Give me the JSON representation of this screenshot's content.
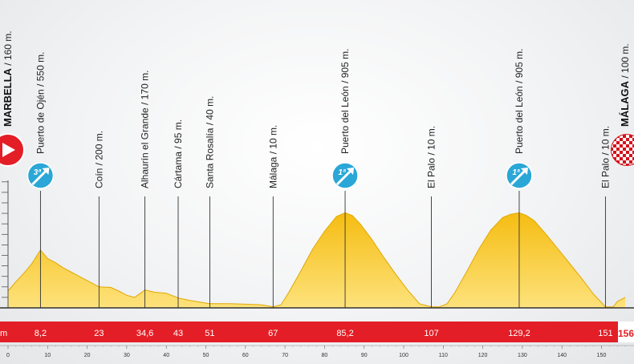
{
  "chart_data": {
    "type": "area",
    "title": "",
    "xlabel": "",
    "ylabel": "",
    "xlim": [
      0,
      156
    ],
    "x_ticks": [
      0,
      10,
      20,
      30,
      40,
      50,
      60,
      70,
      80,
      90,
      100,
      110,
      120,
      130,
      140,
      150
    ],
    "colors": {
      "fill": "#f6c31c",
      "fill_light": "#fbe27a",
      "band": "#e41e26",
      "category": "#2aa7d6",
      "start": "#e41e26"
    },
    "profile": [
      [
        0,
        160
      ],
      [
        2,
        250
      ],
      [
        4,
        330
      ],
      [
        6,
        420
      ],
      [
        7,
        480
      ],
      [
        8.2,
        550
      ],
      [
        10,
        470
      ],
      [
        12,
        430
      ],
      [
        14,
        380
      ],
      [
        16,
        340
      ],
      [
        18,
        300
      ],
      [
        20,
        260
      ],
      [
        23,
        200
      ],
      [
        26,
        195
      ],
      [
        28,
        160
      ],
      [
        30,
        120
      ],
      [
        32,
        100
      ],
      [
        34.6,
        170
      ],
      [
        37,
        150
      ],
      [
        40,
        140
      ],
      [
        43,
        95
      ],
      [
        46,
        70
      ],
      [
        51,
        40
      ],
      [
        56,
        40
      ],
      [
        60,
        35
      ],
      [
        64,
        30
      ],
      [
        67,
        10
      ],
      [
        69,
        30
      ],
      [
        71,
        150
      ],
      [
        74,
        350
      ],
      [
        77,
        560
      ],
      [
        80,
        730
      ],
      [
        83,
        870
      ],
      [
        85.2,
        905
      ],
      [
        87,
        880
      ],
      [
        89,
        800
      ],
      [
        92,
        650
      ],
      [
        95,
        480
      ],
      [
        98,
        320
      ],
      [
        101,
        170
      ],
      [
        104,
        40
      ],
      [
        107,
        10
      ],
      [
        109,
        10
      ],
      [
        111,
        40
      ],
      [
        113,
        150
      ],
      [
        116,
        350
      ],
      [
        119,
        560
      ],
      [
        122,
        740
      ],
      [
        125,
        860
      ],
      [
        127,
        890
      ],
      [
        129.2,
        905
      ],
      [
        131,
        880
      ],
      [
        133,
        830
      ],
      [
        136,
        700
      ],
      [
        139,
        560
      ],
      [
        142,
        420
      ],
      [
        145,
        280
      ],
      [
        148,
        130
      ],
      [
        151,
        10
      ],
      [
        153,
        10
      ],
      [
        154,
        60
      ],
      [
        156,
        100
      ]
    ],
    "points": [
      {
        "km": 0,
        "km_label": "",
        "name": "MARBELLA",
        "elev": " / 160 m.",
        "type": "start"
      },
      {
        "km": 8.2,
        "km_label": "8,2",
        "name": "Puerto de Ojén / 550 m.",
        "category": "3ª"
      },
      {
        "km": 23,
        "km_label": "23",
        "name": "Coín / 200 m."
      },
      {
        "km": 34.6,
        "km_label": "34,6",
        "name": "Alhaurín el Grande / 170 m."
      },
      {
        "km": 43,
        "km_label": "43",
        "name": "Cártama / 95 m."
      },
      {
        "km": 51,
        "km_label": "51",
        "name": "Santa Rosalía / 40 m."
      },
      {
        "km": 67,
        "km_label": "67",
        "name": "Málaga / 10 m."
      },
      {
        "km": 85.2,
        "km_label": "85,2",
        "name": "Puerto del León / 905 m.",
        "category": "1ª"
      },
      {
        "km": 107,
        "km_label": "107",
        "name": "El Palo / 10 m."
      },
      {
        "km": 129.2,
        "km_label": "129,2",
        "name": "Puerto del León / 905 m.",
        "category": "1ª"
      },
      {
        "km": 151,
        "km_label": "151",
        "name": "El Palo / 10 m."
      },
      {
        "km": 156,
        "km_label": "156",
        "name": "MÁLAGA",
        "elev": " / 100 m.",
        "type": "finish"
      }
    ],
    "band_start_label": "m"
  }
}
